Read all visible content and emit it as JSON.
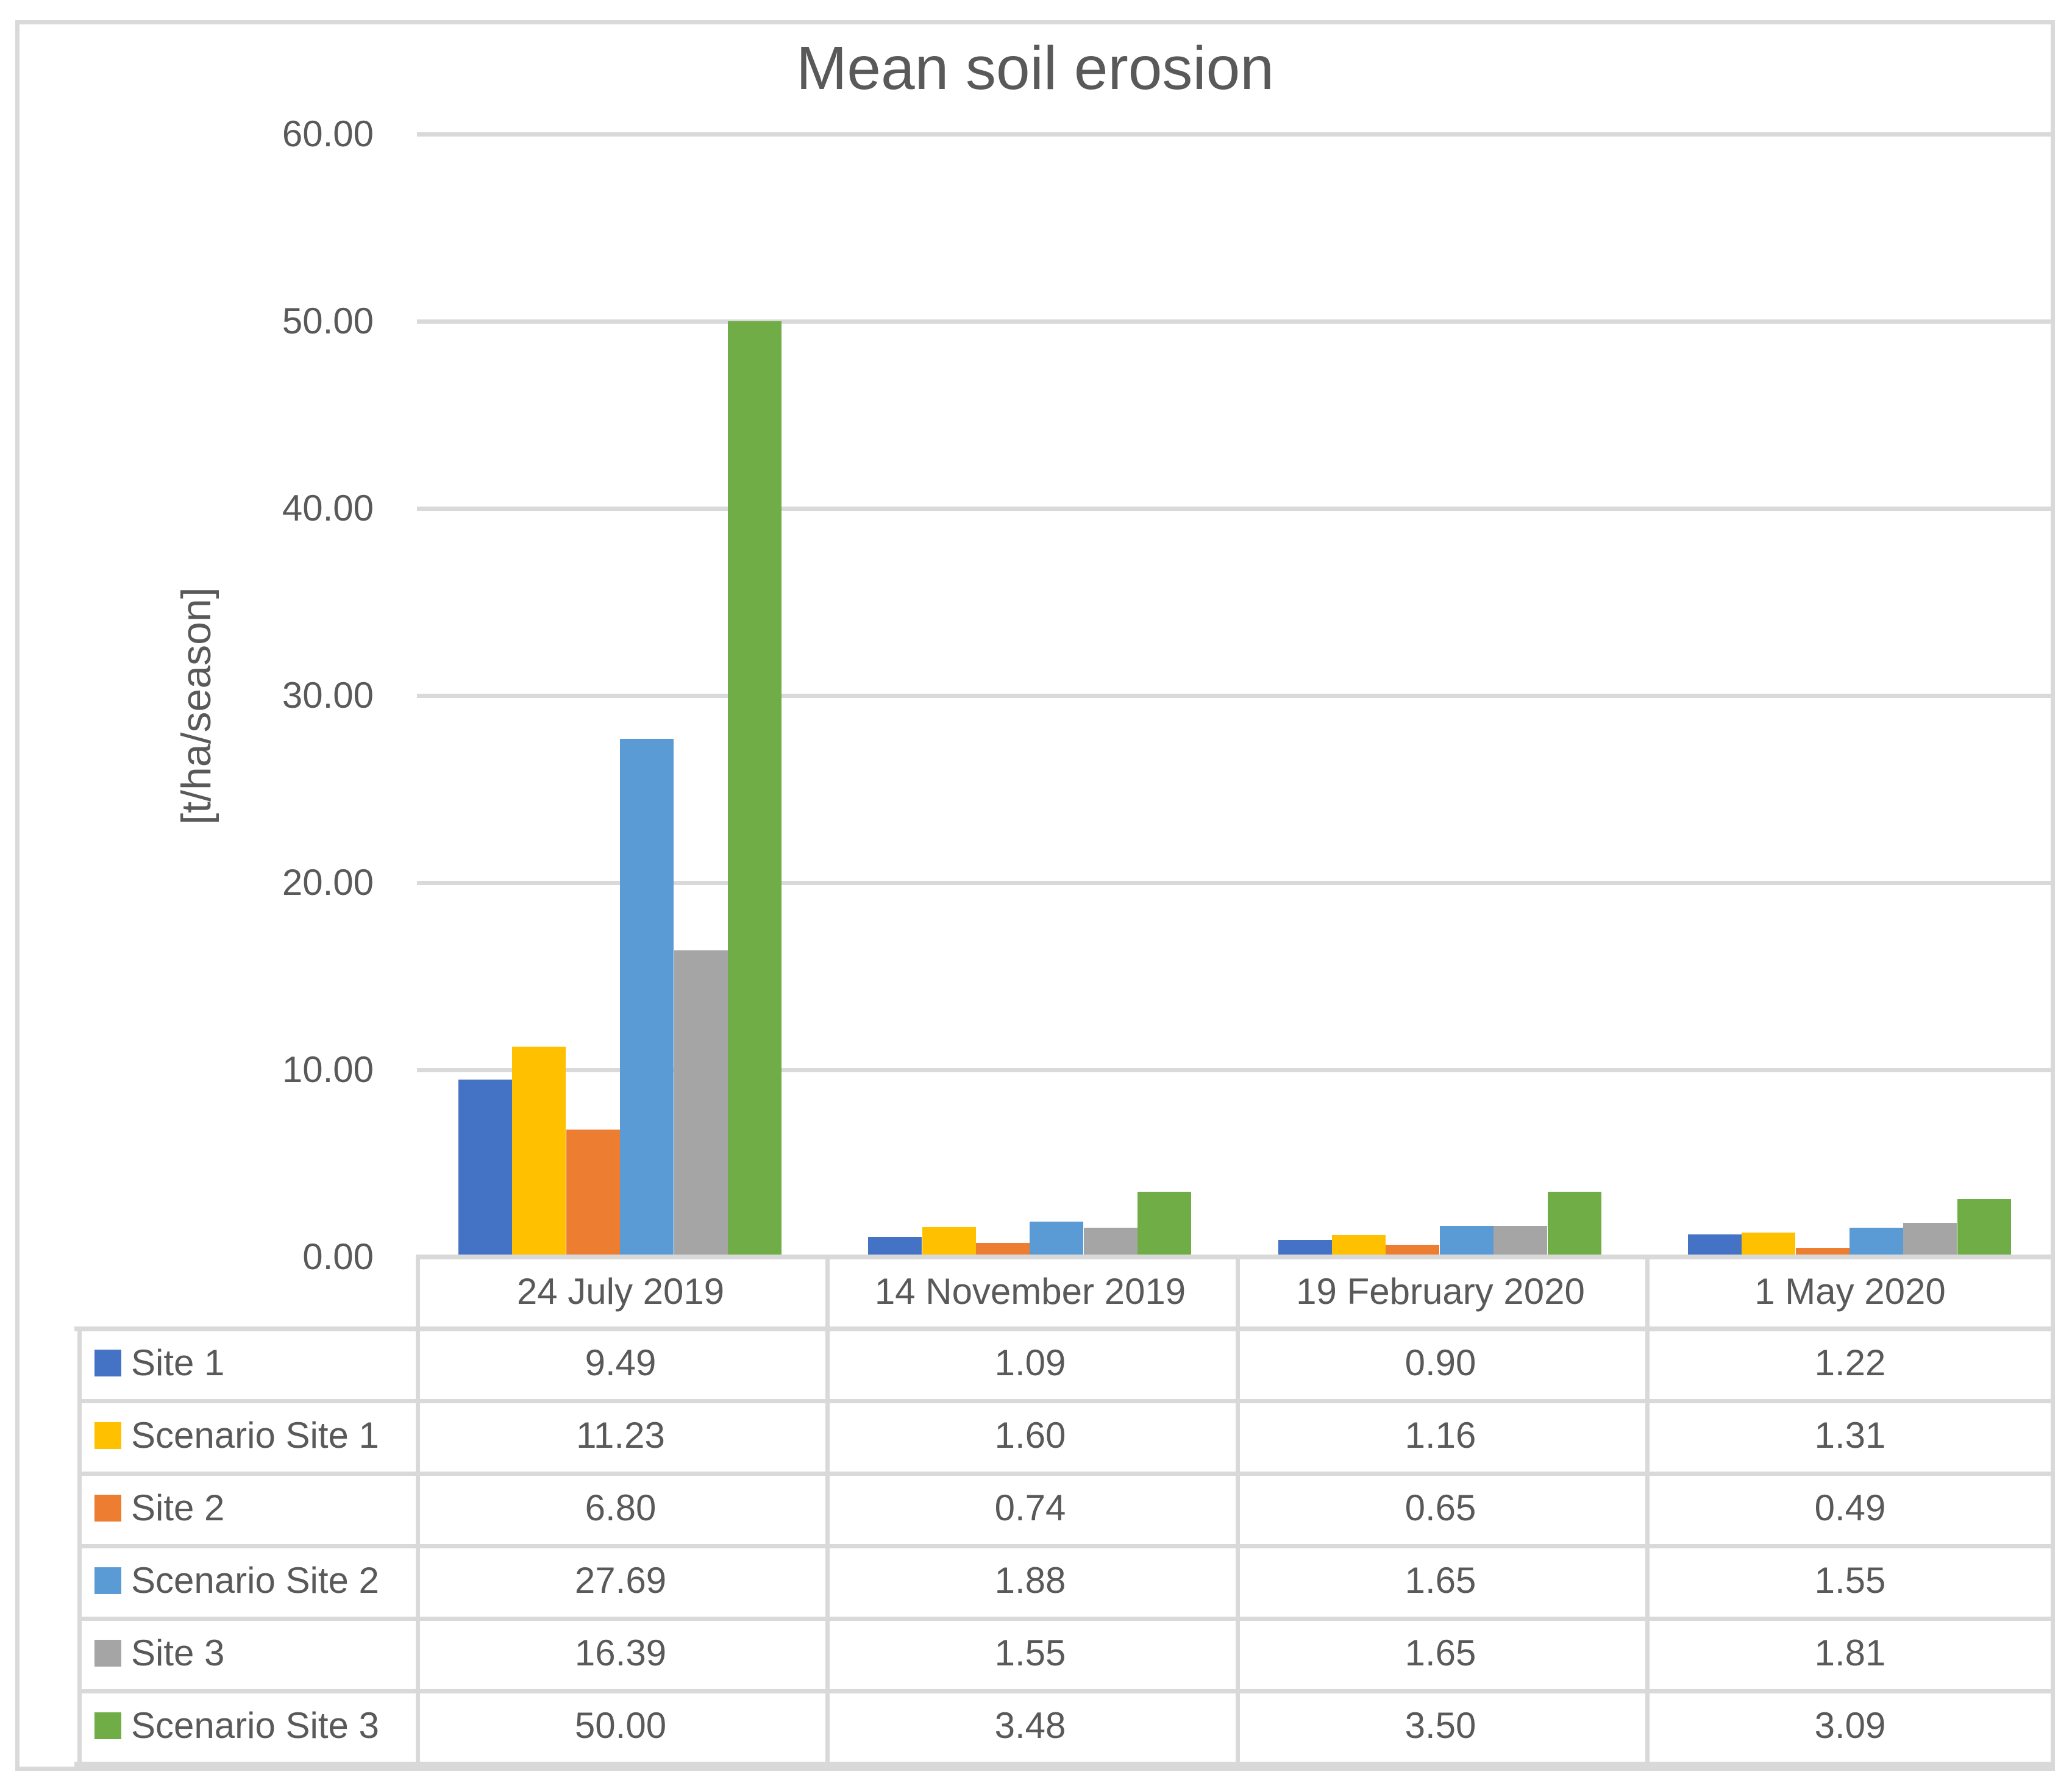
{
  "colors": {
    "text": "#595959",
    "grid": "#D9D9D9",
    "background": "#FFFFFF"
  },
  "chart_data": {
    "type": "bar",
    "title": "Mean soil erosion",
    "xlabel": "",
    "ylabel": "[t/ha/season]",
    "ylim": [
      0,
      60
    ],
    "ytick_step": 10,
    "ytick_labels": [
      "0.00",
      "10.00",
      "20.00",
      "30.00",
      "40.00",
      "50.00",
      "60.00"
    ],
    "grid": "horizontal",
    "legend_position": "data-table-left",
    "categories": [
      "24 July 2019",
      "14 November 2019",
      "19 February 2020",
      "1 May 2020"
    ],
    "series": [
      {
        "name": "Site 1",
        "color": "#4472C4",
        "values": [
          9.49,
          1.09,
          0.9,
          1.22
        ],
        "display": [
          "9.49",
          "1.09",
          "0.90",
          "1.22"
        ]
      },
      {
        "name": "Scenario Site 1",
        "color": "#FFC000",
        "values": [
          11.23,
          1.6,
          1.16,
          1.31
        ],
        "display": [
          "11.23",
          "1.60",
          "1.16",
          "1.31"
        ]
      },
      {
        "name": "Site 2",
        "color": "#ED7D31",
        "values": [
          6.8,
          0.74,
          0.65,
          0.49
        ],
        "display": [
          "6.80",
          "0.74",
          "0.65",
          "0.49"
        ]
      },
      {
        "name": "Scenario Site 2",
        "color": "#5B9BD5",
        "values": [
          27.69,
          1.88,
          1.65,
          1.55
        ],
        "display": [
          "27.69",
          "1.88",
          "1.65",
          "1.55"
        ]
      },
      {
        "name": "Site 3",
        "color": "#A5A5A5",
        "values": [
          16.39,
          1.55,
          1.65,
          1.81
        ],
        "display": [
          "16.39",
          "1.55",
          "1.65",
          "1.81"
        ]
      },
      {
        "name": "Scenario Site 3",
        "color": "#70AD47",
        "values": [
          50.0,
          3.48,
          3.5,
          3.09
        ],
        "display": [
          "50.00",
          "3.48",
          "3.50",
          "3.09"
        ]
      }
    ]
  }
}
